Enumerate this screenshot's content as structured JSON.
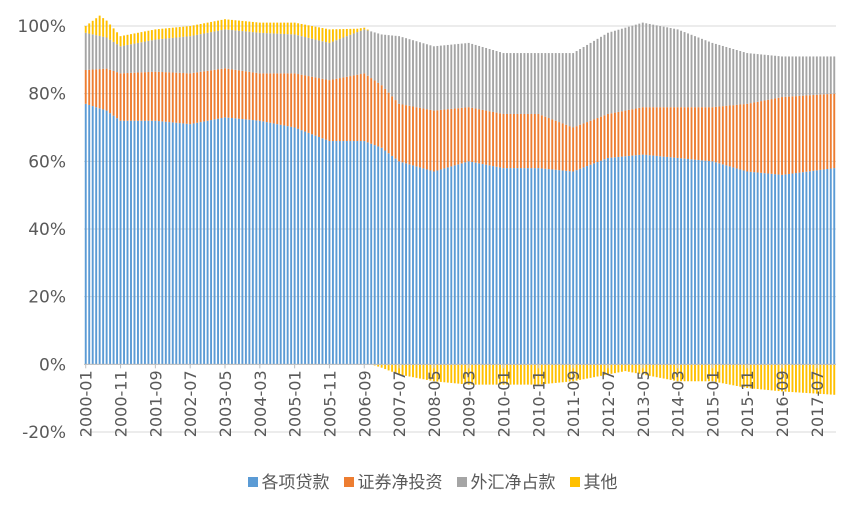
{
  "chart_data": {
    "type": "bar",
    "stacked": true,
    "percent": true,
    "x_start": "2000-01",
    "x_end": "2017-12",
    "x_frequency": "monthly",
    "tick_labels": [
      "2000-01",
      "2000-11",
      "2001-09",
      "2002-07",
      "2003-05",
      "2004-03",
      "2005-01",
      "2005-11",
      "2006-09",
      "2007-07",
      "2008-05",
      "2009-03",
      "2010-01",
      "2010-11",
      "2011-09",
      "2012-07",
      "2013-05",
      "2014-03",
      "2015-01",
      "2015-11",
      "2016-09",
      "2017-07"
    ],
    "y_ticks": [
      "-20%",
      "0%",
      "20%",
      "40%",
      "60%",
      "80%",
      "100%"
    ],
    "ylim": [
      -20,
      100
    ],
    "grid": true,
    "legend_position": "bottom",
    "series": [
      {
        "name": "各项贷款",
        "color": "#5B9BD5",
        "anchors": [
          [
            0,
            77
          ],
          [
            6,
            75
          ],
          [
            10,
            72
          ],
          [
            20,
            72
          ],
          [
            30,
            71
          ],
          [
            40,
            73
          ],
          [
            50,
            72
          ],
          [
            60,
            70
          ],
          [
            70,
            66
          ],
          [
            80,
            66
          ],
          [
            85,
            64
          ],
          [
            90,
            60
          ],
          [
            100,
            57
          ],
          [
            110,
            60
          ],
          [
            120,
            58
          ],
          [
            130,
            58
          ],
          [
            140,
            57
          ],
          [
            150,
            61
          ],
          [
            160,
            62
          ],
          [
            170,
            61
          ],
          [
            180,
            60
          ],
          [
            190,
            57
          ],
          [
            200,
            56
          ],
          [
            215,
            58
          ]
        ]
      },
      {
        "name": "证券净投资",
        "color": "#ED7D31",
        "anchors": [
          [
            0,
            10
          ],
          [
            10,
            14
          ],
          [
            30,
            15
          ],
          [
            50,
            14
          ],
          [
            70,
            18
          ],
          [
            80,
            20
          ],
          [
            90,
            17
          ],
          [
            100,
            18
          ],
          [
            110,
            16
          ],
          [
            130,
            16
          ],
          [
            140,
            13
          ],
          [
            150,
            13
          ],
          [
            160,
            14
          ],
          [
            170,
            15
          ],
          [
            180,
            16
          ],
          [
            190,
            20
          ],
          [
            200,
            23
          ],
          [
            215,
            22
          ]
        ]
      },
      {
        "name": "外汇净占款",
        "color": "#A5A5A5",
        "anchors": [
          [
            0,
            11
          ],
          [
            10,
            8
          ],
          [
            30,
            11
          ],
          [
            50,
            12
          ],
          [
            70,
            11
          ],
          [
            80,
            13
          ],
          [
            85,
            15
          ],
          [
            90,
            20
          ],
          [
            100,
            19
          ],
          [
            110,
            19
          ],
          [
            120,
            18
          ],
          [
            130,
            18
          ],
          [
            140,
            22
          ],
          [
            150,
            24
          ],
          [
            160,
            25
          ],
          [
            170,
            23
          ],
          [
            180,
            19
          ],
          [
            190,
            15
          ],
          [
            200,
            12
          ],
          [
            215,
            11
          ]
        ]
      },
      {
        "name": "其他",
        "color": "#FFC000",
        "anchors": [
          [
            0,
            2
          ],
          [
            4,
            6
          ],
          [
            10,
            3
          ],
          [
            20,
            3
          ],
          [
            30,
            3
          ],
          [
            50,
            3
          ],
          [
            70,
            4
          ],
          [
            78,
            1
          ],
          [
            82,
            0
          ],
          [
            85,
            -1
          ],
          [
            90,
            -3
          ],
          [
            100,
            -5
          ],
          [
            110,
            -6
          ],
          [
            120,
            -6
          ],
          [
            130,
            -6
          ],
          [
            140,
            -5
          ],
          [
            150,
            -3
          ],
          [
            155,
            -2
          ],
          [
            160,
            -3
          ],
          [
            170,
            -5
          ],
          [
            180,
            -5
          ],
          [
            190,
            -7
          ],
          [
            200,
            -8
          ],
          [
            215,
            -9
          ]
        ]
      }
    ]
  }
}
